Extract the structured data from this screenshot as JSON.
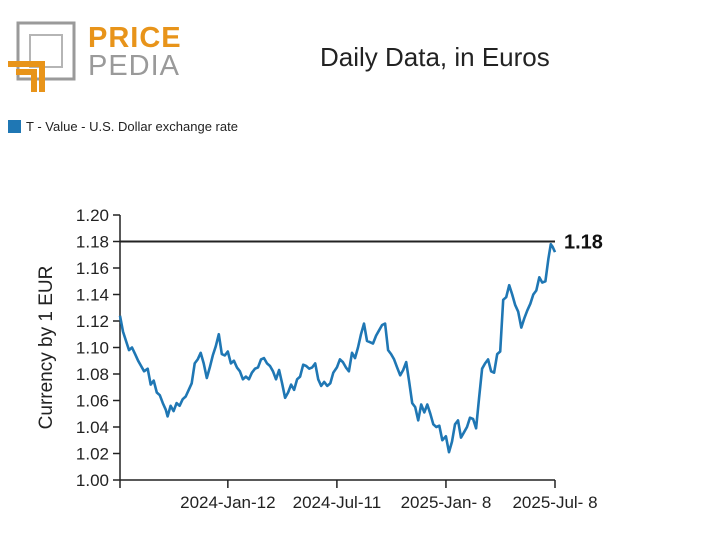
{
  "logo": {
    "line1": "PRICE",
    "line2": "PEDIA"
  },
  "chart_data": {
    "type": "line",
    "title": "Daily Data, in Euros",
    "ylabel": "Currency by 1 EUR",
    "xlabel": "",
    "ylim": [
      1.0,
      1.2
    ],
    "yticks": [
      1.0,
      1.02,
      1.04,
      1.06,
      1.08,
      1.1,
      1.12,
      1.14,
      1.16,
      1.18,
      1.2
    ],
    "x_tick_labels": [
      "2024-Jan-12",
      "2024-Jul-11",
      "2025-Jan- 8",
      "2025-Jul- 8"
    ],
    "x_tick_dates": [
      "2024-01-12",
      "2024-07-11",
      "2025-01-08",
      "2025-07-08"
    ],
    "xlim": [
      "2023-07-17",
      "2025-07-08"
    ],
    "grid": false,
    "legend_position": "top-left",
    "reference_line": {
      "value": 1.18,
      "label": "1.18"
    },
    "series": [
      {
        "name": "T - Value - U.S. Dollar exchange rate",
        "color": "#1f77b4",
        "points": [
          [
            "2023-07-17",
            1.124
          ],
          [
            "2023-07-22",
            1.112
          ],
          [
            "2023-07-27",
            1.105
          ],
          [
            "2023-08-01",
            1.098
          ],
          [
            "2023-08-06",
            1.1
          ],
          [
            "2023-08-11",
            1.095
          ],
          [
            "2023-08-16",
            1.09
          ],
          [
            "2023-08-21",
            1.086
          ],
          [
            "2023-08-26",
            1.082
          ],
          [
            "2023-09-01",
            1.084
          ],
          [
            "2023-09-06",
            1.072
          ],
          [
            "2023-09-11",
            1.075
          ],
          [
            "2023-09-16",
            1.066
          ],
          [
            "2023-09-21",
            1.064
          ],
          [
            "2023-09-26",
            1.058
          ],
          [
            "2023-10-01",
            1.053
          ],
          [
            "2023-10-04",
            1.048
          ],
          [
            "2023-10-09",
            1.056
          ],
          [
            "2023-10-14",
            1.052
          ],
          [
            "2023-10-19",
            1.058
          ],
          [
            "2023-10-24",
            1.056
          ],
          [
            "2023-10-29",
            1.061
          ],
          [
            "2023-11-03",
            1.063
          ],
          [
            "2023-11-08",
            1.068
          ],
          [
            "2023-11-13",
            1.073
          ],
          [
            "2023-11-18",
            1.088
          ],
          [
            "2023-11-23",
            1.091
          ],
          [
            "2023-11-28",
            1.096
          ],
          [
            "2023-12-03",
            1.088
          ],
          [
            "2023-12-08",
            1.077
          ],
          [
            "2023-12-13",
            1.085
          ],
          [
            "2023-12-18",
            1.094
          ],
          [
            "2023-12-23",
            1.101
          ],
          [
            "2023-12-28",
            1.11
          ],
          [
            "2024-01-02",
            1.095
          ],
          [
            "2024-01-07",
            1.094
          ],
          [
            "2024-01-12",
            1.097
          ],
          [
            "2024-01-17",
            1.088
          ],
          [
            "2024-01-22",
            1.09
          ],
          [
            "2024-01-27",
            1.085
          ],
          [
            "2024-02-01",
            1.082
          ],
          [
            "2024-02-06",
            1.076
          ],
          [
            "2024-02-11",
            1.078
          ],
          [
            "2024-02-16",
            1.076
          ],
          [
            "2024-02-21",
            1.081
          ],
          [
            "2024-02-26",
            1.084
          ],
          [
            "2024-03-02",
            1.085
          ],
          [
            "2024-03-07",
            1.091
          ],
          [
            "2024-03-12",
            1.092
          ],
          [
            "2024-03-17",
            1.088
          ],
          [
            "2024-03-22",
            1.086
          ],
          [
            "2024-03-27",
            1.082
          ],
          [
            "2024-04-01",
            1.076
          ],
          [
            "2024-04-06",
            1.083
          ],
          [
            "2024-04-11",
            1.073
          ],
          [
            "2024-04-16",
            1.062
          ],
          [
            "2024-04-21",
            1.066
          ],
          [
            "2024-04-26",
            1.072
          ],
          [
            "2024-05-01",
            1.068
          ],
          [
            "2024-05-06",
            1.076
          ],
          [
            "2024-05-11",
            1.078
          ],
          [
            "2024-05-16",
            1.087
          ],
          [
            "2024-05-21",
            1.086
          ],
          [
            "2024-05-26",
            1.084
          ],
          [
            "2024-05-31",
            1.085
          ],
          [
            "2024-06-05",
            1.088
          ],
          [
            "2024-06-10",
            1.076
          ],
          [
            "2024-06-15",
            1.071
          ],
          [
            "2024-06-20",
            1.074
          ],
          [
            "2024-06-25",
            1.071
          ],
          [
            "2024-06-30",
            1.073
          ],
          [
            "2024-07-05",
            1.081
          ],
          [
            "2024-07-11",
            1.085
          ],
          [
            "2024-07-16",
            1.091
          ],
          [
            "2024-07-21",
            1.089
          ],
          [
            "2024-07-26",
            1.085
          ],
          [
            "2024-07-31",
            1.082
          ],
          [
            "2024-08-05",
            1.096
          ],
          [
            "2024-08-10",
            1.092
          ],
          [
            "2024-08-15",
            1.1
          ],
          [
            "2024-08-20",
            1.11
          ],
          [
            "2024-08-25",
            1.118
          ],
          [
            "2024-08-30",
            1.105
          ],
          [
            "2024-09-04",
            1.104
          ],
          [
            "2024-09-09",
            1.103
          ],
          [
            "2024-09-14",
            1.109
          ],
          [
            "2024-09-19",
            1.113
          ],
          [
            "2024-09-24",
            1.117
          ],
          [
            "2024-09-29",
            1.118
          ],
          [
            "2024-10-04",
            1.098
          ],
          [
            "2024-10-09",
            1.095
          ],
          [
            "2024-10-14",
            1.091
          ],
          [
            "2024-10-19",
            1.085
          ],
          [
            "2024-10-24",
            1.079
          ],
          [
            "2024-10-29",
            1.083
          ],
          [
            "2024-11-03",
            1.089
          ],
          [
            "2024-11-08",
            1.074
          ],
          [
            "2024-11-13",
            1.058
          ],
          [
            "2024-11-18",
            1.055
          ],
          [
            "2024-11-23",
            1.045
          ],
          [
            "2024-11-28",
            1.057
          ],
          [
            "2024-12-03",
            1.051
          ],
          [
            "2024-12-08",
            1.057
          ],
          [
            "2024-12-13",
            1.05
          ],
          [
            "2024-12-18",
            1.042
          ],
          [
            "2024-12-23",
            1.04
          ],
          [
            "2024-12-28",
            1.041
          ],
          [
            "2025-01-02",
            1.03
          ],
          [
            "2025-01-08",
            1.033
          ],
          [
            "2025-01-13",
            1.021
          ],
          [
            "2025-01-18",
            1.029
          ],
          [
            "2025-01-23",
            1.042
          ],
          [
            "2025-01-28",
            1.045
          ],
          [
            "2025-02-02",
            1.032
          ],
          [
            "2025-02-07",
            1.036
          ],
          [
            "2025-02-12",
            1.04
          ],
          [
            "2025-02-17",
            1.047
          ],
          [
            "2025-02-22",
            1.046
          ],
          [
            "2025-02-27",
            1.039
          ],
          [
            "2025-03-04",
            1.062
          ],
          [
            "2025-03-09",
            1.084
          ],
          [
            "2025-03-14",
            1.088
          ],
          [
            "2025-03-19",
            1.091
          ],
          [
            "2025-03-24",
            1.082
          ],
          [
            "2025-03-29",
            1.081
          ],
          [
            "2025-04-03",
            1.095
          ],
          [
            "2025-04-08",
            1.097
          ],
          [
            "2025-04-13",
            1.136
          ],
          [
            "2025-04-18",
            1.138
          ],
          [
            "2025-04-23",
            1.147
          ],
          [
            "2025-04-28",
            1.14
          ],
          [
            "2025-05-03",
            1.132
          ],
          [
            "2025-05-08",
            1.127
          ],
          [
            "2025-05-13",
            1.115
          ],
          [
            "2025-05-18",
            1.122
          ],
          [
            "2025-05-23",
            1.128
          ],
          [
            "2025-05-28",
            1.133
          ],
          [
            "2025-06-02",
            1.14
          ],
          [
            "2025-06-07",
            1.143
          ],
          [
            "2025-06-12",
            1.153
          ],
          [
            "2025-06-17",
            1.149
          ],
          [
            "2025-06-22",
            1.15
          ],
          [
            "2025-06-27",
            1.167
          ],
          [
            "2025-07-01",
            1.178
          ],
          [
            "2025-07-04",
            1.176
          ],
          [
            "2025-07-08",
            1.172
          ]
        ]
      }
    ]
  }
}
